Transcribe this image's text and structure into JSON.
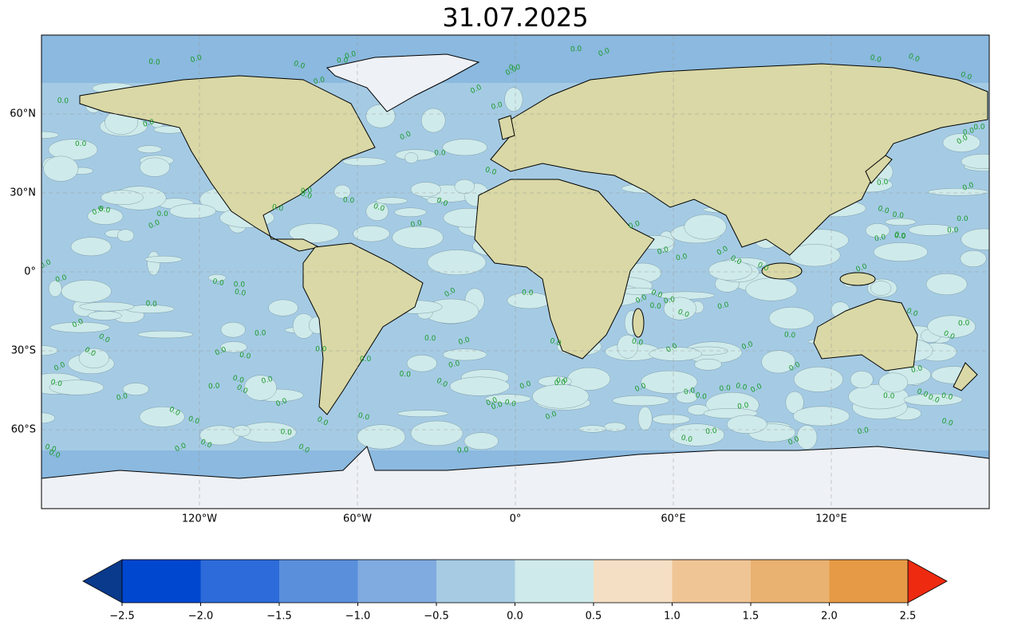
{
  "map": {
    "title": "31.07.2025",
    "xlim": [
      -180,
      180
    ],
    "ylim": [
      -90,
      90
    ],
    "xticks": [
      {
        "value": -120,
        "label": "120°W"
      },
      {
        "value": -60,
        "label": "60°W"
      },
      {
        "value": 0,
        "label": "0°"
      },
      {
        "value": 60,
        "label": "60°E"
      },
      {
        "value": 120,
        "label": "120°E"
      }
    ],
    "yticks": [
      {
        "value": 60,
        "label": "60°N"
      },
      {
        "value": 30,
        "label": "30°N"
      },
      {
        "value": 0,
        "label": "0°"
      },
      {
        "value": -30,
        "label": "30°S"
      },
      {
        "value": -60,
        "label": "60°S"
      }
    ],
    "grid": true,
    "contour_label": "0.0",
    "colorbar": {
      "lim": [
        -2.5,
        2.5
      ],
      "ticks": [
        {
          "value": -2.5,
          "label": "−2.5"
        },
        {
          "value": -2.0,
          "label": "−2.0"
        },
        {
          "value": -1.5,
          "label": "−1.5"
        },
        {
          "value": -1.0,
          "label": "−1.0"
        },
        {
          "value": -0.5,
          "label": "−0.5"
        },
        {
          "value": 0,
          "label": "0.0"
        },
        0.5,
        {
          "value": 1.0,
          "label": "1.0"
        },
        1.5,
        {
          "value": 2.0,
          "label": "2.0"
        },
        2.5
      ],
      "colors": [
        "#0047d0",
        "#2c6bd9",
        "#5a8fdc",
        "#80abe0",
        "#a6cbe3",
        "#cfeaea",
        "#f4dfc4",
        "#f0c596",
        "#eab270",
        "#e69a45"
      ],
      "under_color": "#0a3a8c",
      "over_color": "#ee2a10"
    }
  }
}
